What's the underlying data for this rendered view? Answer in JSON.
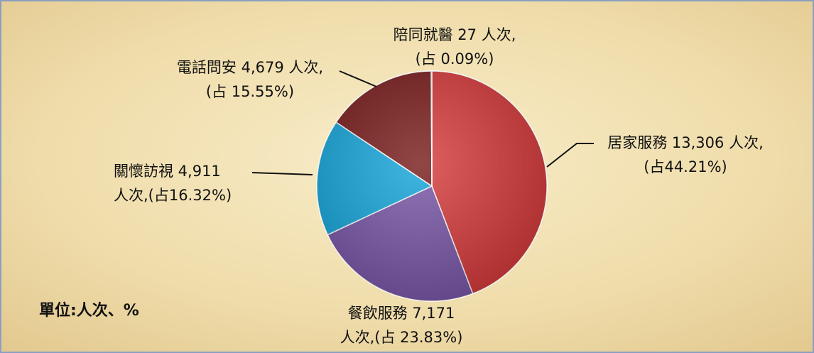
{
  "chart_data": {
    "type": "pie",
    "categories": [
      "居家服務",
      "餐飲服務",
      "關懷訪視",
      "電話問安",
      "陪同就醫"
    ],
    "values": [
      13306,
      7171,
      4911,
      4679,
      27
    ],
    "value_labels": [
      [
        "居家服務 13,306 人次,",
        "(占44.21%)"
      ],
      [
        "餐飲服務 7,171",
        "人次,(占 23.83%)"
      ],
      [
        "關懷訪視 4,911",
        "人次,(占16.32%)"
      ],
      [
        "電話問安 4,679 人次,",
        "(占 15.55%)"
      ],
      [
        "陪同就醫 27 人次,",
        "(占 0.09%)"
      ]
    ],
    "colors": [
      "#d63c3c",
      "#7a58a8",
      "#17a6da",
      "#7a1e1e",
      "#c9a65a"
    ],
    "note": "單位:人次、%"
  }
}
